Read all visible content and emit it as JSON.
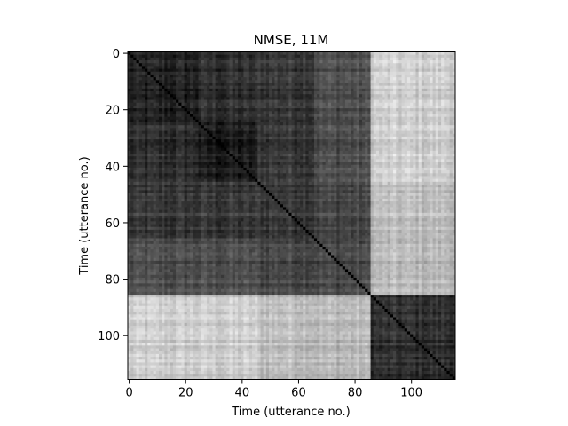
{
  "chart_data": {
    "type": "heatmap",
    "title": "NMSE, 11M",
    "xlabel": "Time (utterance no.)",
    "ylabel": "Time (utterance no.)",
    "size": 116,
    "colormap": "gray",
    "y_origin": "top",
    "xlim": [
      0,
      116
    ],
    "ylim": [
      116,
      0
    ],
    "xticks": [
      0,
      20,
      40,
      60,
      80,
      100
    ],
    "yticks": [
      0,
      20,
      40,
      60,
      80,
      100
    ],
    "segments": [
      {
        "start": 0,
        "end": 25,
        "self_level": 0.12
      },
      {
        "start": 25,
        "end": 46,
        "self_level": 0.1
      },
      {
        "start": 46,
        "end": 66,
        "self_level": 0.24
      },
      {
        "start": 66,
        "end": 86,
        "self_level": 0.28
      },
      {
        "start": 86,
        "end": 116,
        "self_level": 0.18
      }
    ],
    "block_levels": [
      [
        0.12,
        0.17,
        0.22,
        0.3,
        0.8
      ],
      [
        0.17,
        0.1,
        0.22,
        0.3,
        0.8
      ],
      [
        0.22,
        0.22,
        0.24,
        0.28,
        0.75
      ],
      [
        0.3,
        0.3,
        0.28,
        0.28,
        0.72
      ],
      [
        0.8,
        0.8,
        0.75,
        0.72,
        0.18
      ]
    ],
    "diagonal_value": 0.0
  }
}
